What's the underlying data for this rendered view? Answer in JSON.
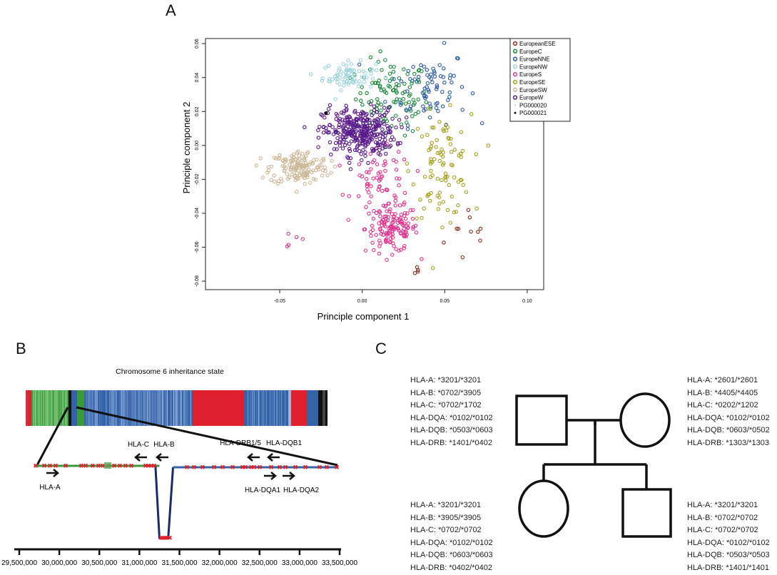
{
  "panel_labels": {
    "a": "A",
    "b": "B",
    "c": "C"
  },
  "pca": {
    "xlabel": "Principle component 1",
    "ylabel": "Principle component 2",
    "xticks": [
      "-0.05",
      "0.00",
      "0.05",
      "0.10"
    ],
    "yticks": [
      "-0.08",
      "-0.06",
      "-0.04",
      "-0.02",
      "0.00",
      "0.02",
      "0.04",
      "0.06"
    ],
    "legend": [
      {
        "label": "EuropeanESE",
        "color": "#8b2a1e",
        "marker": "circle"
      },
      {
        "label": "EuropeC",
        "color": "#1a8a3c",
        "marker": "circle"
      },
      {
        "label": "EuropeNNE",
        "color": "#2a5aa8",
        "marker": "circle"
      },
      {
        "label": "EuropeNW",
        "color": "#9fd4dc",
        "marker": "circle"
      },
      {
        "label": "EuropeS",
        "color": "#e0338f",
        "marker": "circle"
      },
      {
        "label": "EuropeSE",
        "color": "#a5a31c",
        "marker": "circle"
      },
      {
        "label": "EuropeSW",
        "color": "#cdb898",
        "marker": "circle"
      },
      {
        "label": "EuropeW",
        "color": "#5a1a8c",
        "marker": "circle"
      },
      {
        "label": "PG000020",
        "color": "#888888",
        "marker": "dot-small"
      },
      {
        "label": "PG000021",
        "color": "#111111",
        "marker": "dot"
      }
    ]
  },
  "chart_data": [
    {
      "type": "scatter",
      "xlabel": "Principle component 1",
      "ylabel": "Principle component 2",
      "xlim": [
        -0.095,
        0.11
      ],
      "ylim": [
        -0.085,
        0.063
      ],
      "xticks": [
        -0.05,
        0.0,
        0.05,
        0.1
      ],
      "yticks": [
        -0.08,
        -0.06,
        -0.04,
        -0.02,
        0.0,
        0.02,
        0.04,
        0.06
      ],
      "legend_position": "top-right",
      "series": [
        {
          "name": "EuropeanESE",
          "color": "#8b2a1e",
          "clusters": [
            {
              "cx": 0.068,
              "cy": -0.052,
              "sx": 0.009,
              "sy": 0.01,
              "n": 10
            },
            {
              "cx": 0.032,
              "cy": -0.073,
              "sx": 0.002,
              "sy": 0.002,
              "n": 4
            }
          ]
        },
        {
          "name": "EuropeC",
          "color": "#1a8a3c",
          "clusters": [
            {
              "cx": 0.018,
              "cy": 0.028,
              "sx": 0.011,
              "sy": 0.011,
              "n": 110
            }
          ]
        },
        {
          "name": "EuropeNNE",
          "color": "#2a5aa8",
          "clusters": [
            {
              "cx": 0.04,
              "cy": 0.035,
              "sx": 0.012,
              "sy": 0.011,
              "n": 75
            }
          ]
        },
        {
          "name": "EuropeNW",
          "color": "#9fd4dc",
          "clusters": [
            {
              "cx": -0.008,
              "cy": 0.041,
              "sx": 0.008,
              "sy": 0.004,
              "n": 75
            }
          ]
        },
        {
          "name": "EuropeS",
          "color": "#e0338f",
          "clusters": [
            {
              "cx": 0.018,
              "cy": -0.049,
              "sx": 0.008,
              "sy": 0.007,
              "n": 140
            },
            {
              "cx": 0.012,
              "cy": -0.021,
              "sx": 0.009,
              "sy": 0.009,
              "n": 60
            },
            {
              "cx": -0.045,
              "cy": -0.054,
              "sx": 0.007,
              "sy": 0.004,
              "n": 5
            }
          ]
        },
        {
          "name": "EuropeSE",
          "color": "#a5a31c",
          "clusters": [
            {
              "cx": 0.048,
              "cy": -0.012,
              "sx": 0.009,
              "sy": 0.015,
              "n": 95
            }
          ]
        },
        {
          "name": "EuropeSW",
          "color": "#cdb898",
          "clusters": [
            {
              "cx": -0.038,
              "cy": -0.013,
              "sx": 0.009,
              "sy": 0.005,
              "n": 150
            }
          ]
        },
        {
          "name": "EuropeW",
          "color": "#5a1a8c",
          "clusters": [
            {
              "cx": -0.002,
              "cy": 0.008,
              "sx": 0.011,
              "sy": 0.007,
              "n": 330
            }
          ]
        },
        {
          "name": "PG000021",
          "color": "#111111",
          "points": [
            [
              -0.022,
              0.019
            ]
          ]
        }
      ]
    },
    {
      "type": "line",
      "title": "Chromosome 6 inheritance state",
      "xlim": [
        29500000,
        33500000
      ],
      "xticks": [
        29500000,
        30000000,
        30500000,
        31000000,
        31500000,
        32000000,
        32500000,
        33000000,
        33500000
      ],
      "xtick_labels": [
        "29,500,000",
        "30,000,000",
        "30,500,000",
        "31,000,000",
        "31,500,000",
        "32,000,000",
        "32,500,000",
        "33,000,000",
        "33,500,000"
      ],
      "state_bar_colors": {
        "green": "#3a9a3a",
        "blue": "#3563a8",
        "red": "#e0202c",
        "black": "#111111"
      },
      "state_segments": [
        {
          "x": [
            29500000,
            31250000
          ],
          "state": "green"
        },
        {
          "x": [
            31250000,
            31350000
          ],
          "state": "red"
        },
        {
          "x": [
            31420000,
            33500000
          ],
          "state": "blue"
        }
      ],
      "genes": [
        {
          "label": "HLA-A",
          "position": 30000000,
          "direction": "right"
        },
        {
          "label": "HLA-C",
          "position": 31100000,
          "direction": "left"
        },
        {
          "label": "HLA-B",
          "position": 31320000,
          "direction": "left"
        },
        {
          "label": "HLA-DRB1/5",
          "position": 32500000,
          "direction": "left"
        },
        {
          "label": "HLA-DQB1",
          "position": 32660000,
          "direction": "left"
        },
        {
          "label": "HLA-DQA1",
          "position": 32600000,
          "direction": "right"
        },
        {
          "label": "HLA-DQA2",
          "position": 32730000,
          "direction": "right"
        }
      ]
    }
  ],
  "pedigree": {
    "father": [
      "HLA-A: *3201/*3201",
      "HLA-B: *0702/*3905",
      "HLA-C: *0702/*1702",
      "HLA-DQA: *0102/*0102",
      "HLA-DQB: *0503/*0603",
      "HLA-DRB: *1401/*0402"
    ],
    "mother": [
      "HLA-A: *2601/*2601",
      "HLA-B: *4405/*4405",
      "HLA-C: *0202/*1202",
      "HLA-DQA: *0102/*0102",
      "HLA-DQB: *0603/*0502",
      "HLA-DRB: *1303/*1303"
    ],
    "daughter": [
      "HLA-A: *3201/*3201",
      "HLA-B: *3905/*3905",
      "HLA-C: *0702/*0702",
      "HLA-DQA: *0102/*0102",
      "HLA-DQB: *0603/*0603",
      "HLA-DRB: *0402/*0402"
    ],
    "son": [
      "HLA-A: *3201/*3201",
      "HLA-B: *0702/*0702",
      "HLA-C: *0702/*0702",
      "HLA-DQA: *0102/*0102",
      "HLA-DQB: *0503/*0503",
      "HLA-DRB: *1401/*1401"
    ]
  }
}
